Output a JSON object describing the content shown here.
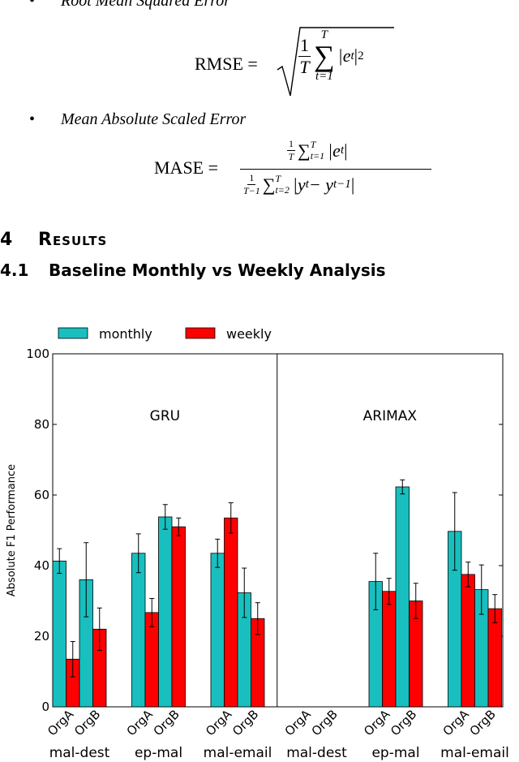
{
  "metrics": [
    {
      "name": "Root Mean Squared Error"
    },
    {
      "name": "Mean Absolute Scaled Error"
    }
  ],
  "rmse": {
    "lhs": "RMSE",
    "eq": "=",
    "num": "1",
    "den": "T",
    "sum": "∑",
    "sup": "T",
    "sub": "t=1",
    "body": "|e",
    "body_sub": "t",
    "body_end": "|",
    "power": "2"
  },
  "mase": {
    "lhs": "MASE",
    "eq": "=",
    "top": {
      "f_num": "1",
      "f_den": "T",
      "sum": "∑",
      "sub": "t=1",
      "sup": "T",
      "body": "|e",
      "body_sub": "t",
      "body_end": "|"
    },
    "bottom": {
      "f_num": "1",
      "f_den": "T−1",
      "sum": "∑",
      "sub": "t=2",
      "sup": "T",
      "body": "|y",
      "body_sub": "t",
      "mid": " − y",
      "mid_sub": "t−1",
      "body_end": "|"
    }
  },
  "section": {
    "number": "4",
    "title": "Results"
  },
  "subsection": {
    "number": "4.1",
    "title": "Baseline Monthly vs Weekly Analysis"
  },
  "chart_data": {
    "type": "bar",
    "ylabel": "Absolute F1 Performance",
    "panels": [
      "GRU",
      "ARIMAX"
    ],
    "groups": [
      "mal-dest",
      "ep-mal",
      "mal-email",
      "mal-dest",
      "ep-mal",
      "mal-email"
    ],
    "categories": [
      "OrgA",
      "OrgB",
      "OrgA",
      "OrgB",
      "OrgA",
      "OrgB",
      "OrgA",
      "OrgB",
      "OrgA",
      "OrgB",
      "OrgA",
      "OrgB"
    ],
    "series": [
      {
        "name": "monthly",
        "color": "#19bfbf",
        "values": [
          41.3,
          36,
          43.5,
          53.8,
          43.5,
          32.3,
          0,
          0,
          35.5,
          62.3,
          49.7,
          33.2
        ],
        "errors": [
          3.5,
          10.5,
          5.5,
          3.5,
          4,
          7,
          0,
          0,
          8,
          2,
          11,
          7
        ]
      },
      {
        "name": "weekly",
        "color": "#ff0000",
        "values": [
          13.5,
          22,
          26.7,
          51,
          53.5,
          25,
          0,
          0,
          32.7,
          30,
          37.5,
          27.8
        ],
        "errors": [
          5,
          6,
          4,
          2.5,
          4.3,
          4.5,
          0,
          0,
          3.7,
          5,
          3.5,
          4
        ]
      }
    ],
    "ylim": [
      0,
      100
    ],
    "yticks": [
      0,
      20,
      40,
      60,
      80,
      100
    ],
    "legend": "top-left"
  }
}
